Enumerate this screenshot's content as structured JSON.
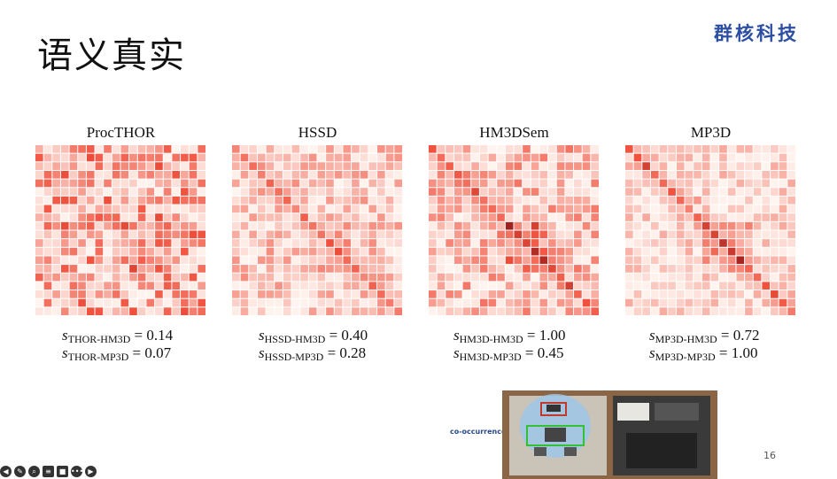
{
  "slide": {
    "title": "语义真实",
    "brand": "群核科技",
    "page_number": "16",
    "inset_label": "co-occurrence"
  },
  "panels": [
    {
      "title": "ProcTHOR",
      "s1_sub": "THOR-HM3D",
      "s1_val": "= 0.14",
      "s2_sub": "THOR-MP3D",
      "s2_val": "= 0.07",
      "intensity": 0.62,
      "diag": 0.35
    },
    {
      "title": "HSSD",
      "s1_sub": "HSSD-HM3D",
      "s1_val": "= 0.40",
      "s2_sub": "HSSD-MP3D",
      "s2_val": "= 0.28",
      "intensity": 0.38,
      "diag": 0.55
    },
    {
      "title": "HM3DSem",
      "s1_sub": "HM3D-HM3D",
      "s1_val": "= 1.00",
      "s2_sub": "HM3D-MP3D",
      "s2_val": "= 0.45",
      "intensity": 0.48,
      "diag": 0.75
    },
    {
      "title": "MP3D",
      "s1_sub": "MP3D-HM3D",
      "s1_val": "= 0.72",
      "s2_sub": "MP3D-MP3D",
      "s2_val": "= 1.00",
      "intensity": 0.28,
      "diag": 0.7
    }
  ],
  "colors": {
    "heat_low": "#fff5f0",
    "heat_high": "#67000d",
    "brand": "#2d4fa3"
  },
  "toolbar": {
    "icons": [
      "back-arrow-icon",
      "pen-icon",
      "magnifier-icon",
      "cc-icon",
      "camera-icon",
      "more-icon",
      "forward-arrow-icon"
    ]
  }
}
